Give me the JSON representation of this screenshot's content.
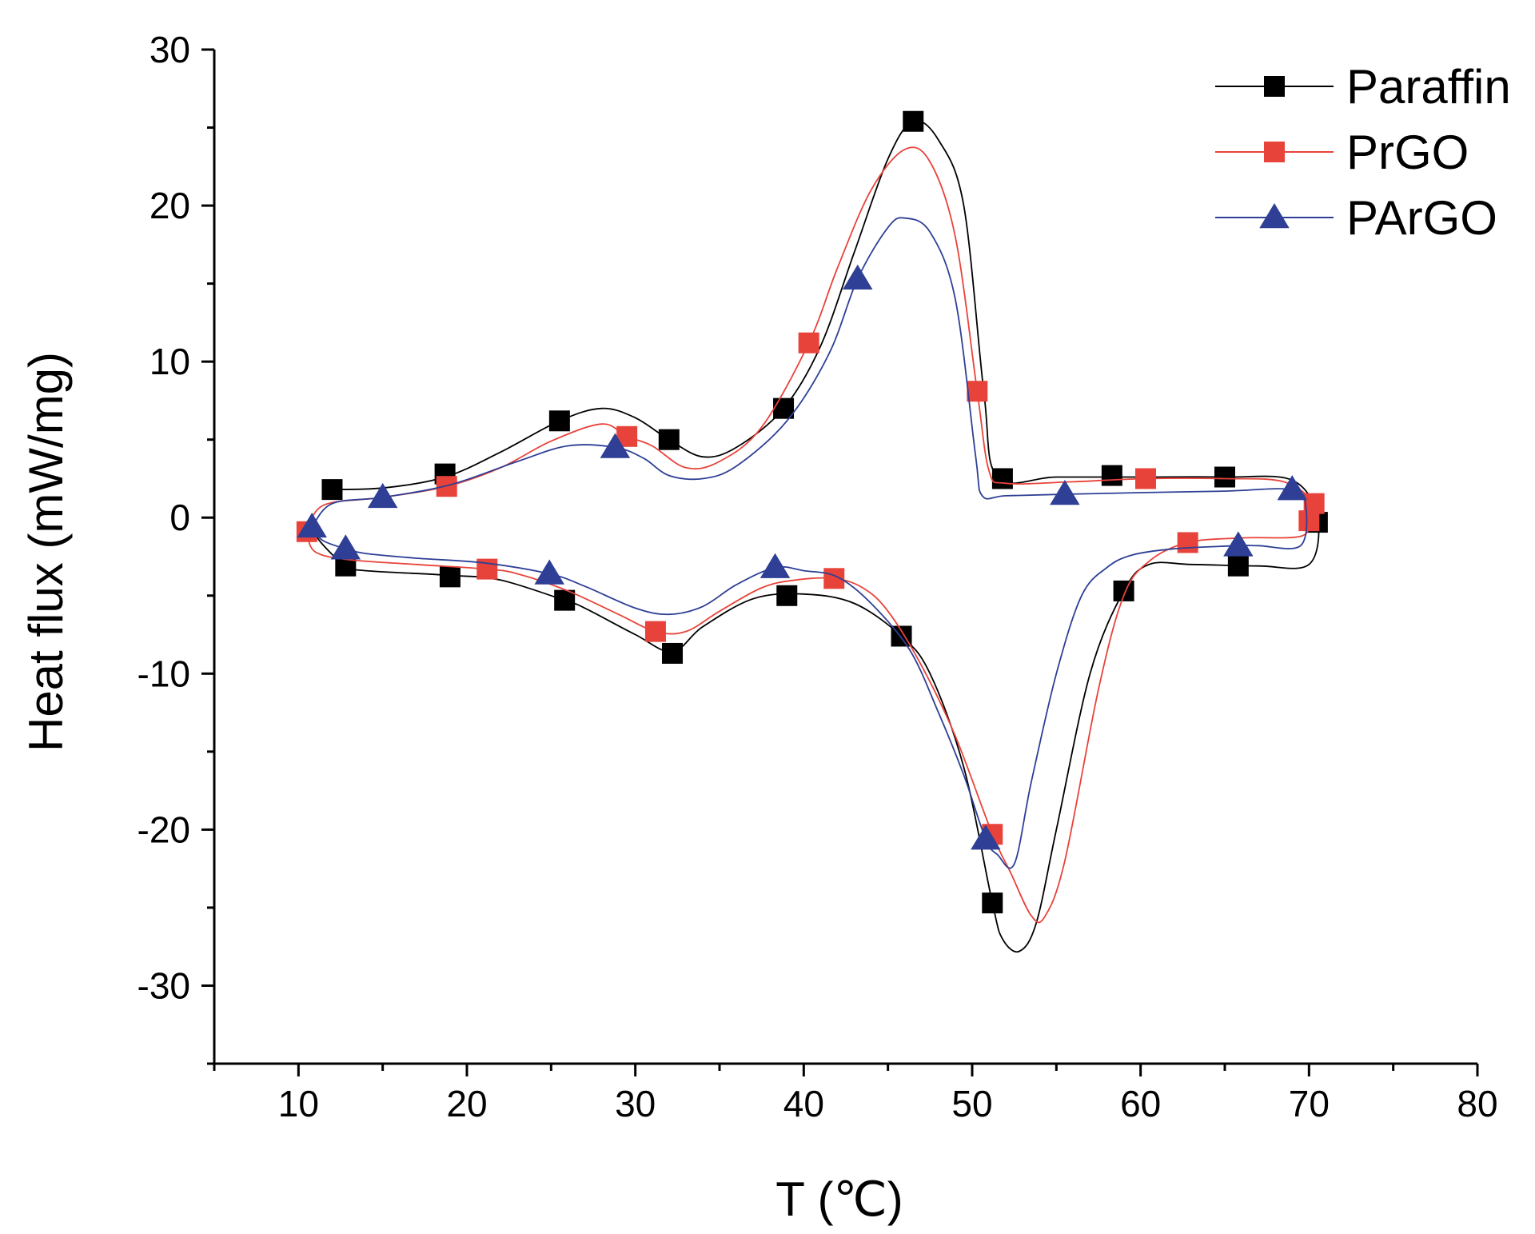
{
  "chart_data": {
    "type": "line",
    "title": "",
    "xlabel": "T (℃)",
    "ylabel": "Heat flux (mW/mg)",
    "xlim": [
      5,
      80
    ],
    "ylim": [
      -35,
      30
    ],
    "xticks": [
      10,
      20,
      30,
      40,
      50,
      60,
      70,
      80
    ],
    "yticks": [
      30,
      20,
      10,
      0,
      -10,
      -20,
      -30
    ],
    "legend_position": "top-right",
    "series": [
      {
        "name": "Paraffin",
        "color": "#000000",
        "marker": "square",
        "markers": [
          [
            12.0,
            1.8
          ],
          [
            18.7,
            2.8
          ],
          [
            25.5,
            6.2
          ],
          [
            32.0,
            5.0
          ],
          [
            38.8,
            7.0
          ],
          [
            46.5,
            25.4
          ],
          [
            51.8,
            2.5
          ],
          [
            58.3,
            2.7
          ],
          [
            65.0,
            2.6
          ],
          [
            70.5,
            -0.3
          ],
          [
            65.8,
            -3.1
          ],
          [
            59.0,
            -4.7
          ],
          [
            51.2,
            -24.7
          ],
          [
            45.8,
            -7.6
          ],
          [
            39.0,
            -5.0
          ],
          [
            32.2,
            -8.7
          ],
          [
            25.8,
            -5.3
          ],
          [
            19.0,
            -3.8
          ],
          [
            12.8,
            -3.1
          ]
        ],
        "curve": [
          [
            11.5,
            1.8
          ],
          [
            15,
            1.9
          ],
          [
            18.7,
            2.6
          ],
          [
            22,
            4.2
          ],
          [
            25.5,
            6.2
          ],
          [
            28,
            7.0
          ],
          [
            30,
            6.4
          ],
          [
            32,
            5.0
          ],
          [
            34,
            3.9
          ],
          [
            36,
            4.5
          ],
          [
            38.8,
            7.0
          ],
          [
            41,
            11
          ],
          [
            43,
            17
          ],
          [
            45,
            23
          ],
          [
            46.5,
            25.4
          ],
          [
            48,
            24.2
          ],
          [
            49.5,
            20
          ],
          [
            50.7,
            8
          ],
          [
            51.5,
            2.6
          ],
          [
            55,
            2.6
          ],
          [
            60,
            2.6
          ],
          [
            65,
            2.6
          ],
          [
            69,
            2.4
          ],
          [
            70.5,
            0
          ],
          [
            70.0,
            -3.0
          ],
          [
            67,
            -3.1
          ],
          [
            63,
            -3.0
          ],
          [
            60.5,
            -3.0
          ],
          [
            59,
            -4.7
          ],
          [
            57,
            -10
          ],
          [
            55,
            -20
          ],
          [
            53.8,
            -26
          ],
          [
            52.8,
            -27.8
          ],
          [
            51.8,
            -27
          ],
          [
            51.2,
            -24.7
          ],
          [
            49.5,
            -16
          ],
          [
            47.5,
            -10
          ],
          [
            45.8,
            -7.6
          ],
          [
            43,
            -5.5
          ],
          [
            40,
            -4.9
          ],
          [
            37,
            -5.2
          ],
          [
            34,
            -7
          ],
          [
            32.2,
            -8.6
          ],
          [
            30,
            -7.5
          ],
          [
            27,
            -5.8
          ],
          [
            25.8,
            -5.3
          ],
          [
            22,
            -4.0
          ],
          [
            19,
            -3.7
          ],
          [
            14,
            -3.4
          ],
          [
            12.8,
            -3.1
          ],
          [
            11.5,
            -1.8
          ],
          [
            10.8,
            -0.8
          ]
        ]
      },
      {
        "name": "PrGO",
        "color": "#e8433a",
        "marker": "square",
        "markers": [
          [
            10.5,
            -0.9
          ],
          [
            18.8,
            2.0
          ],
          [
            29.5,
            5.2
          ],
          [
            40.3,
            11.2
          ],
          [
            50.3,
            8.1
          ],
          [
            60.3,
            2.5
          ],
          [
            70.3,
            0.9
          ],
          [
            70.0,
            -0.2
          ],
          [
            62.8,
            -1.6
          ],
          [
            51.2,
            -20.3
          ],
          [
            41.8,
            -3.9
          ],
          [
            31.2,
            -7.3
          ],
          [
            21.2,
            -3.3
          ]
        ],
        "curve": [
          [
            10.5,
            -0.9
          ],
          [
            11.5,
            0.8
          ],
          [
            15,
            1.3
          ],
          [
            18.8,
            2.0
          ],
          [
            22,
            3.2
          ],
          [
            25,
            4.9
          ],
          [
            28,
            6.0
          ],
          [
            29.5,
            5.2
          ],
          [
            31,
            4.6
          ],
          [
            33,
            3.2
          ],
          [
            35,
            3.6
          ],
          [
            37.5,
            5.8
          ],
          [
            40.3,
            11.2
          ],
          [
            42,
            16
          ],
          [
            44,
            21
          ],
          [
            46,
            23.6
          ],
          [
            47.5,
            22.8
          ],
          [
            49,
            18
          ],
          [
            50.3,
            8.1
          ],
          [
            51,
            3.0
          ],
          [
            52,
            2.2
          ],
          [
            56,
            2.3
          ],
          [
            60.3,
            2.5
          ],
          [
            65,
            2.5
          ],
          [
            68.5,
            2.3
          ],
          [
            70.3,
            0.9
          ],
          [
            70.0,
            -0.2
          ],
          [
            69.5,
            -1.2
          ],
          [
            66,
            -1.3
          ],
          [
            62.8,
            -1.6
          ],
          [
            60.5,
            -2.8
          ],
          [
            59,
            -5
          ],
          [
            57.5,
            -11
          ],
          [
            55.5,
            -22
          ],
          [
            54.3,
            -25.6
          ],
          [
            53.5,
            -25.5
          ],
          [
            52.3,
            -22.8
          ],
          [
            51.2,
            -20.3
          ],
          [
            49,
            -14
          ],
          [
            47,
            -9.5
          ],
          [
            45,
            -6
          ],
          [
            43.5,
            -4.5
          ],
          [
            41.8,
            -3.9
          ],
          [
            39.5,
            -4
          ],
          [
            37.5,
            -4.5
          ],
          [
            35,
            -6
          ],
          [
            33,
            -7.3
          ],
          [
            31.2,
            -7.3
          ],
          [
            29,
            -6.2
          ],
          [
            26,
            -4.7
          ],
          [
            23,
            -3.6
          ],
          [
            21.2,
            -3.3
          ],
          [
            17,
            -3.0
          ],
          [
            13,
            -2.7
          ],
          [
            11,
            -2.2
          ],
          [
            10.5,
            -1.0
          ]
        ]
      },
      {
        "name": "PArGO",
        "color": "#2e3f95",
        "marker": "triangle",
        "markers": [
          [
            10.8,
            -0.6
          ],
          [
            15.0,
            1.3
          ],
          [
            28.8,
            4.5
          ],
          [
            43.2,
            15.3
          ],
          [
            55.5,
            1.5
          ],
          [
            69.0,
            1.8
          ],
          [
            65.8,
            -1.8
          ],
          [
            50.8,
            -20.6
          ],
          [
            38.3,
            -3.2
          ],
          [
            24.9,
            -3.6
          ],
          [
            12.8,
            -2.0
          ]
        ],
        "curve": [
          [
            10.8,
            -0.6
          ],
          [
            12,
            0.9
          ],
          [
            15,
            1.3
          ],
          [
            19,
            2.1
          ],
          [
            23,
            3.6
          ],
          [
            26,
            4.6
          ],
          [
            28.8,
            4.5
          ],
          [
            30.5,
            3.8
          ],
          [
            32,
            2.7
          ],
          [
            34,
            2.5
          ],
          [
            36,
            3.3
          ],
          [
            39,
            6.2
          ],
          [
            41.5,
            10.5
          ],
          [
            43.2,
            15.3
          ],
          [
            45,
            18.6
          ],
          [
            46,
            19.2
          ],
          [
            47.5,
            18.3
          ],
          [
            49,
            14
          ],
          [
            50.2,
            4
          ],
          [
            50.6,
            1.4
          ],
          [
            52,
            1.4
          ],
          [
            55.5,
            1.5
          ],
          [
            60,
            1.6
          ],
          [
            65,
            1.7
          ],
          [
            69,
            1.8
          ],
          [
            69.8,
            0.8
          ],
          [
            69.5,
            -1.8
          ],
          [
            67,
            -1.8
          ],
          [
            65.8,
            -1.8
          ],
          [
            62,
            -2.0
          ],
          [
            59.5,
            -2.4
          ],
          [
            58,
            -3.2
          ],
          [
            56.5,
            -5
          ],
          [
            55,
            -10
          ],
          [
            53.5,
            -17
          ],
          [
            52.5,
            -22.2
          ],
          [
            51.5,
            -21.6
          ],
          [
            50.8,
            -20.6
          ],
          [
            49.5,
            -16.5
          ],
          [
            48,
            -12.5
          ],
          [
            46.3,
            -8.5
          ],
          [
            44,
            -5.5
          ],
          [
            42,
            -3.8
          ],
          [
            40,
            -3.4
          ],
          [
            38.3,
            -3.2
          ],
          [
            36,
            -4.3
          ],
          [
            34,
            -5.7
          ],
          [
            32,
            -6.2
          ],
          [
            30,
            -5.8
          ],
          [
            27,
            -4.4
          ],
          [
            24.9,
            -3.6
          ],
          [
            21,
            -2.9
          ],
          [
            17,
            -2.6
          ],
          [
            14,
            -2.3
          ],
          [
            12.8,
            -2.0
          ],
          [
            11.5,
            -1.5
          ],
          [
            10.8,
            -0.8
          ]
        ]
      }
    ]
  }
}
